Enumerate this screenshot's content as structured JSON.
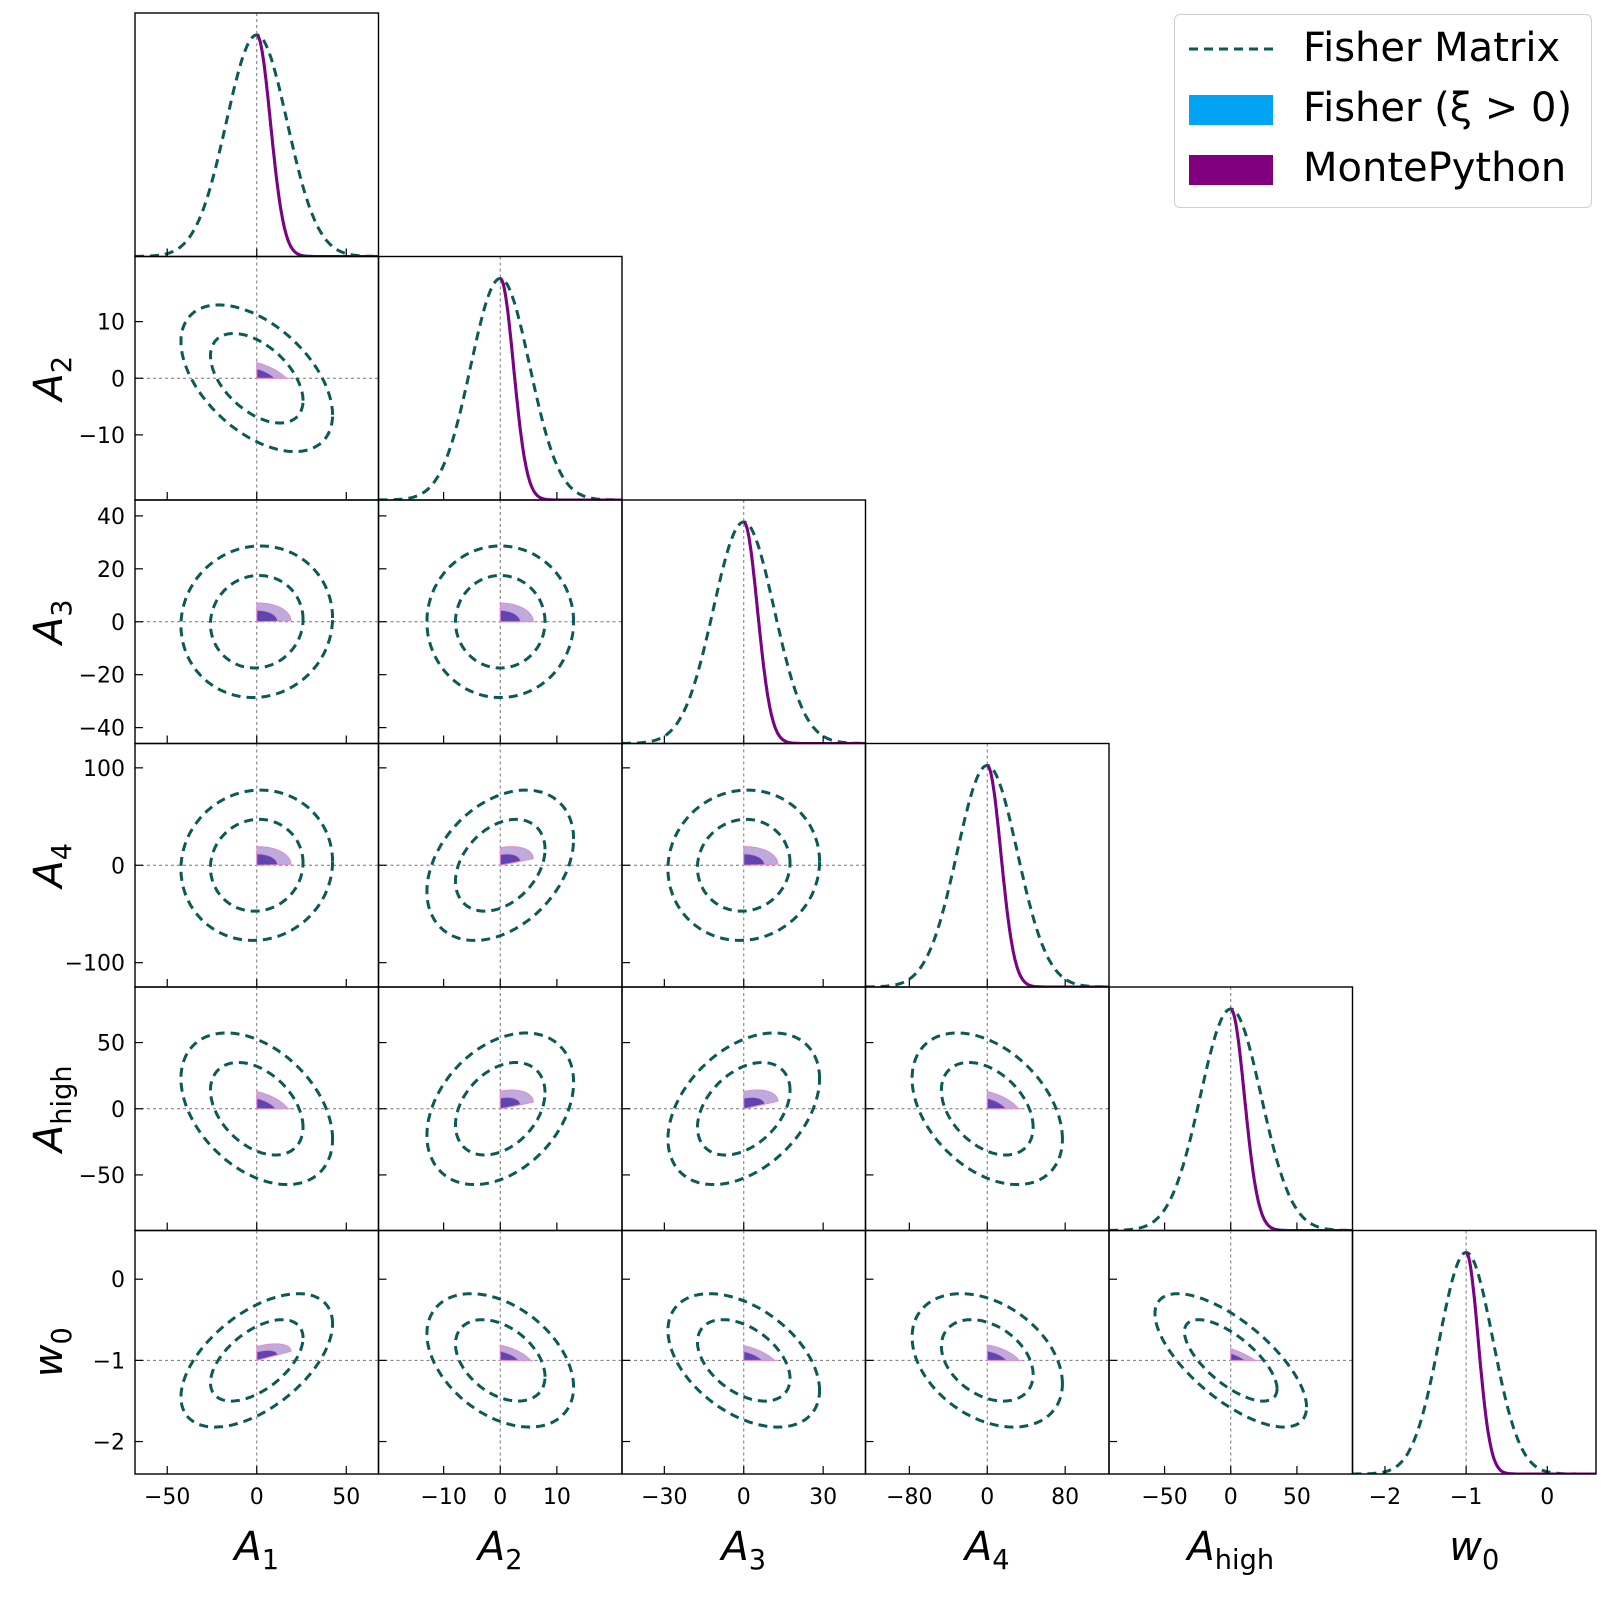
{
  "legend": {
    "fisher_matrix": "Fisher Matrix",
    "fisher_positive": "Fisher (ξ > 0)",
    "montepython": "MontePython"
  },
  "colors": {
    "fisher_matrix": "#0b5a56",
    "fisher_positive": "#00a4f2",
    "montepython": "#800080",
    "contour_inner": "#5a3fae",
    "contour_outer": "#b9a7da",
    "contour_edge": "#e58ad0"
  },
  "chart_data": {
    "type": "triangle-corner-plot",
    "parameters": [
      {
        "name": "A1",
        "label": "A",
        "sub": "1",
        "fiducial": 0,
        "sigma": 17,
        "range": [
          -68,
          68
        ],
        "ticks": [
          -50,
          0,
          50
        ],
        "tick_labels": [
          "−50",
          "0",
          "50"
        ]
      },
      {
        "name": "A2",
        "label": "A",
        "sub": "2",
        "fiducial": 0,
        "sigma": 5.2,
        "range": [
          -21.5,
          21.5
        ],
        "ticks": [
          -10,
          0,
          10
        ],
        "tick_labels": [
          "−10",
          "0",
          "10"
        ]
      },
      {
        "name": "A3",
        "label": "A",
        "sub": "3",
        "fiducial": 0,
        "sigma": 11.5,
        "range": [
          -46,
          46
        ],
        "ticks": [
          -30,
          0,
          30
        ],
        "tick_labels": [
          "−30",
          "0",
          "30"
        ]
      },
      {
        "name": "A4",
        "label": "A",
        "sub": "4",
        "fiducial": 0,
        "sigma": 31,
        "range": [
          -125,
          125
        ],
        "ticks": [
          -80,
          0,
          80
        ],
        "tick_labels": [
          "−80",
          "0",
          "80"
        ]
      },
      {
        "name": "Ahigh",
        "label": "A",
        "sub": "high",
        "fiducial": 0,
        "sigma": 23,
        "range": [
          -92,
          92
        ],
        "ticks": [
          -50,
          0,
          50
        ],
        "tick_labels": [
          "−50",
          "0",
          "50"
        ]
      },
      {
        "name": "w0",
        "label": "w",
        "sub": "0",
        "fiducial": -1,
        "sigma": 0.33,
        "range": [
          -2.4,
          0.6
        ],
        "ticks": [
          -2,
          -1,
          0
        ],
        "tick_labels": [
          "−2",
          "−1",
          "0"
        ]
      }
    ],
    "y_axis_ticks": {
      "A2": {
        "ticks": [
          -10,
          0,
          10
        ],
        "tick_labels": [
          "−10",
          "0",
          "10"
        ]
      },
      "A3": {
        "ticks": [
          -40,
          -20,
          0,
          20,
          40
        ],
        "tick_labels": [
          "−40",
          "−20",
          "0",
          "20",
          "40"
        ]
      },
      "A4": {
        "ticks": [
          -100,
          0,
          100
        ],
        "tick_labels": [
          "−100",
          "0",
          "100"
        ]
      },
      "Ahigh": {
        "ticks": [
          -50,
          0,
          50
        ],
        "tick_labels": [
          "−50",
          "0",
          "50"
        ]
      },
      "w0": {
        "ticks": [
          -2,
          -1,
          0
        ],
        "tick_labels": [
          "−2",
          "−1",
          "0"
        ]
      }
    },
    "correlations": [
      [
        1,
        -0.5,
        0.05,
        0.05,
        -0.4,
        0.55
      ],
      [
        -0.5,
        1,
        0.0,
        0.35,
        0.35,
        -0.4
      ],
      [
        0.05,
        0.0,
        1,
        0.05,
        0.4,
        -0.45
      ],
      [
        0.05,
        0.35,
        0.05,
        1,
        -0.4,
        -0.35
      ],
      [
        -0.4,
        0.35,
        0.4,
        -0.4,
        1,
        -0.7
      ],
      [
        0.55,
        -0.4,
        -0.45,
        -0.35,
        -0.7,
        1
      ]
    ],
    "fisher_contour_levels_sigma": [
      1.52,
      2.49
    ],
    "positive_prior_posterior_scale": 0.45,
    "title": "",
    "xlabel": "",
    "ylabel": ""
  }
}
